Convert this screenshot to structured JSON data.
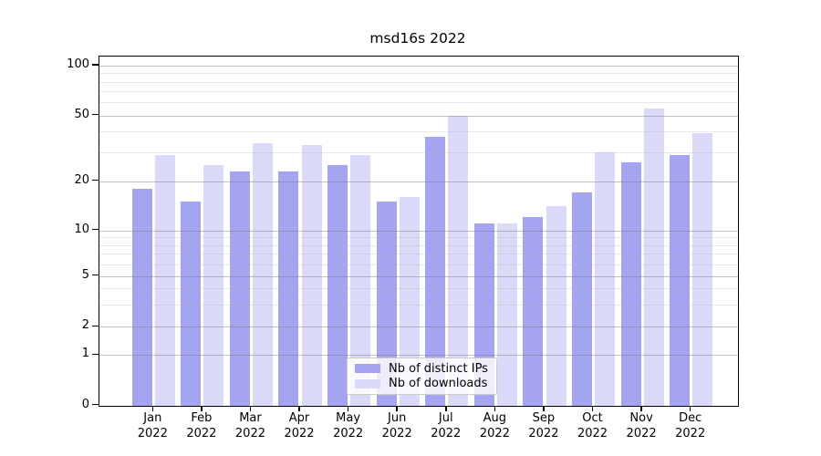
{
  "title": "msd16s 2022",
  "legend": {
    "items": [
      {
        "label": "Nb of distinct IPs",
        "color": "#a4a4f0"
      },
      {
        "label": "Nb of downloads",
        "color": "#dadaf8"
      }
    ]
  },
  "chart_data": {
    "type": "bar",
    "title": "msd16s 2022",
    "categories": [
      "Jan",
      "Feb",
      "Mar",
      "Apr",
      "May",
      "Jun",
      "Jul",
      "Aug",
      "Sep",
      "Oct",
      "Nov",
      "Dec"
    ],
    "category_year": "2022",
    "series": [
      {
        "name": "Nb of distinct IPs",
        "color": "#a4a4f0",
        "values": [
          18,
          15,
          23,
          23,
          25,
          15,
          37,
          11,
          12,
          17,
          26,
          29
        ]
      },
      {
        "name": "Nb of downloads",
        "color": "#dadaf8",
        "values": [
          29,
          25,
          34,
          33,
          29,
          16,
          50,
          11,
          14,
          30,
          55,
          39
        ]
      }
    ],
    "yscale": "symlog",
    "ylim": [
      0,
      100
    ],
    "yticks": [
      0,
      1,
      2,
      5,
      10,
      20,
      50,
      100
    ],
    "yticks_minor": [
      3,
      4,
      6,
      7,
      8,
      9,
      30,
      40,
      60,
      70,
      80,
      90
    ],
    "grid": true,
    "legend_position": "lower center"
  }
}
